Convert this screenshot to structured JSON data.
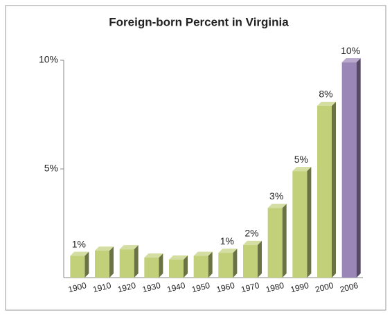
{
  "chart_data": {
    "type": "bar",
    "title": "Foreign-born Percent in Virginia",
    "categories": [
      "1900",
      "1910",
      "1920",
      "1930",
      "1940",
      "1950",
      "1960",
      "1970",
      "1980",
      "1990",
      "2000",
      "2006"
    ],
    "values": [
      1.0,
      1.24,
      1.3,
      0.92,
      0.83,
      1.0,
      1.14,
      1.5,
      3.2,
      4.9,
      7.9,
      9.9
    ],
    "value_labels": [
      "1%",
      null,
      null,
      null,
      null,
      null,
      "1%",
      "2%",
      "3%",
      "5%",
      "8%",
      "10%"
    ],
    "colors": [
      "#c3d07a",
      "#c3d07a",
      "#c3d07a",
      "#c3d07a",
      "#c3d07a",
      "#c3d07a",
      "#c3d07a",
      "#c3d07a",
      "#c3d07a",
      "#c3d07a",
      "#c3d07a",
      "#9b86b8"
    ],
    "ylim": [
      0,
      10
    ],
    "yticks": [
      {
        "value": 5,
        "label": "5%"
      },
      {
        "value": 10,
        "label": "10%"
      }
    ],
    "grid": false
  }
}
